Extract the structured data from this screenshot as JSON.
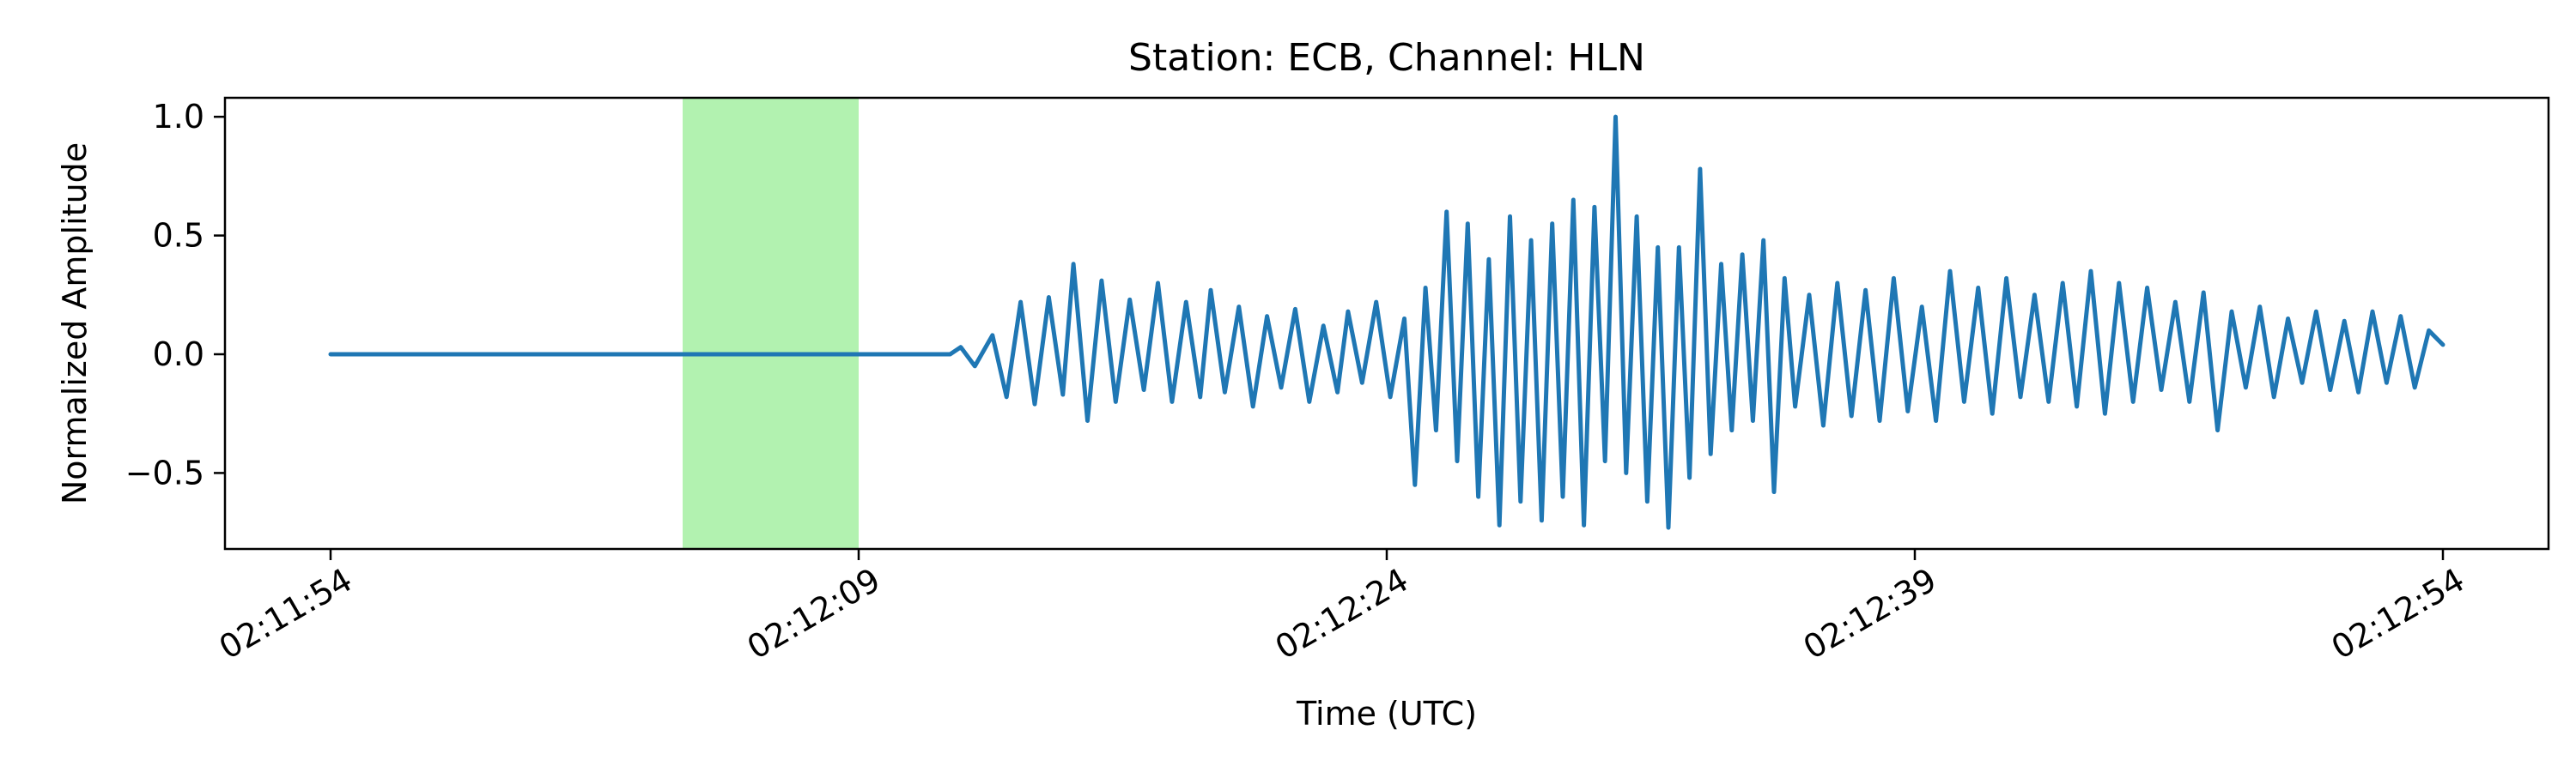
{
  "chart_data": {
    "type": "line",
    "title": "Station: ECB, Channel: HLN",
    "xlabel": "Time (UTC)",
    "ylabel": "Normalized Amplitude",
    "x_ticks": [
      "02:11:54",
      "02:12:09",
      "02:12:24",
      "02:12:39",
      "02:12:54"
    ],
    "y_ticks": [
      "−0.5",
      "0.0",
      "0.5",
      "1.0"
    ],
    "xlim": [
      "02:11:51",
      "02:12:57"
    ],
    "ylim": [
      -0.82,
      1.08
    ],
    "grid": false,
    "color": "#1f77b4",
    "highlight": {
      "x_start": "02:12:04",
      "x_end": "02:12:09",
      "color": "#b2f2b0"
    },
    "series": [
      {
        "name": "",
        "x_start": "02:11:54",
        "x_end": "02:12:54",
        "points": [
          [
            "02:11:54",
            0.0
          ],
          [
            "02:12:11.6",
            0.0
          ],
          [
            "02:12:11.9",
            0.03
          ],
          [
            "02:12:12.3",
            -0.05
          ],
          [
            "02:12:12.8",
            0.08
          ],
          [
            "02:12:13.2",
            -0.18
          ],
          [
            "02:12:13.6",
            0.22
          ],
          [
            "02:12:14.0",
            -0.21
          ],
          [
            "02:12:14.4",
            0.24
          ],
          [
            "02:12:14.8",
            -0.17
          ],
          [
            "02:12:15.1",
            0.38
          ],
          [
            "02:12:15.5",
            -0.28
          ],
          [
            "02:12:15.9",
            0.31
          ],
          [
            "02:12:16.3",
            -0.2
          ],
          [
            "02:12:16.7",
            0.23
          ],
          [
            "02:12:17.1",
            -0.15
          ],
          [
            "02:12:17.5",
            0.3
          ],
          [
            "02:12:17.9",
            -0.2
          ],
          [
            "02:12:18.3",
            0.22
          ],
          [
            "02:12:18.7",
            -0.18
          ],
          [
            "02:12:19.0",
            0.27
          ],
          [
            "02:12:19.4",
            -0.16
          ],
          [
            "02:12:19.8",
            0.2
          ],
          [
            "02:12:20.2",
            -0.22
          ],
          [
            "02:12:20.6",
            0.16
          ],
          [
            "02:12:21.0",
            -0.14
          ],
          [
            "02:12:21.4",
            0.19
          ],
          [
            "02:12:21.8",
            -0.2
          ],
          [
            "02:12:22.2",
            0.12
          ],
          [
            "02:12:22.6",
            -0.16
          ],
          [
            "02:12:22.9",
            0.18
          ],
          [
            "02:12:23.3",
            -0.12
          ],
          [
            "02:12:23.7",
            0.22
          ],
          [
            "02:12:24.1",
            -0.18
          ],
          [
            "02:12:24.5",
            0.15
          ],
          [
            "02:12:24.8",
            -0.55
          ],
          [
            "02:12:25.1",
            0.28
          ],
          [
            "02:12:25.4",
            -0.32
          ],
          [
            "02:12:25.7",
            0.6
          ],
          [
            "02:12:26.0",
            -0.45
          ],
          [
            "02:12:26.3",
            0.55
          ],
          [
            "02:12:26.6",
            -0.6
          ],
          [
            "02:12:26.9",
            0.4
          ],
          [
            "02:12:27.2",
            -0.72
          ],
          [
            "02:12:27.5",
            0.58
          ],
          [
            "02:12:27.8",
            -0.62
          ],
          [
            "02:12:28.1",
            0.48
          ],
          [
            "02:12:28.4",
            -0.7
          ],
          [
            "02:12:28.7",
            0.55
          ],
          [
            "02:12:29.0",
            -0.6
          ],
          [
            "02:12:29.3",
            0.65
          ],
          [
            "02:12:29.6",
            -0.72
          ],
          [
            "02:12:29.9",
            0.62
          ],
          [
            "02:12:30.2",
            -0.45
          ],
          [
            "02:12:30.5",
            1.0
          ],
          [
            "02:12:30.8",
            -0.5
          ],
          [
            "02:12:31.1",
            0.58
          ],
          [
            "02:12:31.4",
            -0.62
          ],
          [
            "02:12:31.7",
            0.45
          ],
          [
            "02:12:32.0",
            -0.73
          ],
          [
            "02:12:32.3",
            0.45
          ],
          [
            "02:12:32.6",
            -0.52
          ],
          [
            "02:12:32.9",
            0.78
          ],
          [
            "02:12:33.2",
            -0.42
          ],
          [
            "02:12:33.5",
            0.38
          ],
          [
            "02:12:33.8",
            -0.32
          ],
          [
            "02:12:34.1",
            0.42
          ],
          [
            "02:12:34.4",
            -0.28
          ],
          [
            "02:12:34.7",
            0.48
          ],
          [
            "02:12:35.0",
            -0.58
          ],
          [
            "02:12:35.3",
            0.32
          ],
          [
            "02:12:35.6",
            -0.22
          ],
          [
            "02:12:36.0",
            0.25
          ],
          [
            "02:12:36.4",
            -0.3
          ],
          [
            "02:12:36.8",
            0.3
          ],
          [
            "02:12:37.2",
            -0.26
          ],
          [
            "02:12:37.6",
            0.27
          ],
          [
            "02:12:38.0",
            -0.28
          ],
          [
            "02:12:38.4",
            0.32
          ],
          [
            "02:12:38.8",
            -0.24
          ],
          [
            "02:12:39.2",
            0.2
          ],
          [
            "02:12:39.6",
            -0.28
          ],
          [
            "02:12:40.0",
            0.35
          ],
          [
            "02:12:40.4",
            -0.2
          ],
          [
            "02:12:40.8",
            0.28
          ],
          [
            "02:12:41.2",
            -0.25
          ],
          [
            "02:12:41.6",
            0.32
          ],
          [
            "02:12:42.0",
            -0.18
          ],
          [
            "02:12:42.4",
            0.25
          ],
          [
            "02:12:42.8",
            -0.2
          ],
          [
            "02:12:43.2",
            0.3
          ],
          [
            "02:12:43.6",
            -0.22
          ],
          [
            "02:12:44.0",
            0.35
          ],
          [
            "02:12:44.4",
            -0.25
          ],
          [
            "02:12:44.8",
            0.3
          ],
          [
            "02:12:45.2",
            -0.2
          ],
          [
            "02:12:45.6",
            0.28
          ],
          [
            "02:12:46.0",
            -0.15
          ],
          [
            "02:12:46.4",
            0.22
          ],
          [
            "02:12:46.8",
            -0.2
          ],
          [
            "02:12:47.2",
            0.26
          ],
          [
            "02:12:47.6",
            -0.32
          ],
          [
            "02:12:48.0",
            0.18
          ],
          [
            "02:12:48.4",
            -0.14
          ],
          [
            "02:12:48.8",
            0.2
          ],
          [
            "02:12:49.2",
            -0.18
          ],
          [
            "02:12:49.6",
            0.15
          ],
          [
            "02:12:50.0",
            -0.12
          ],
          [
            "02:12:50.4",
            0.18
          ],
          [
            "02:12:50.8",
            -0.15
          ],
          [
            "02:12:51.2",
            0.14
          ],
          [
            "02:12:51.6",
            -0.16
          ],
          [
            "02:12:52.0",
            0.18
          ],
          [
            "02:12:52.4",
            -0.12
          ],
          [
            "02:12:52.8",
            0.16
          ],
          [
            "02:12:53.2",
            -0.14
          ],
          [
            "02:12:53.6",
            0.1
          ],
          [
            "02:12:54",
            0.04
          ]
        ]
      }
    ]
  }
}
